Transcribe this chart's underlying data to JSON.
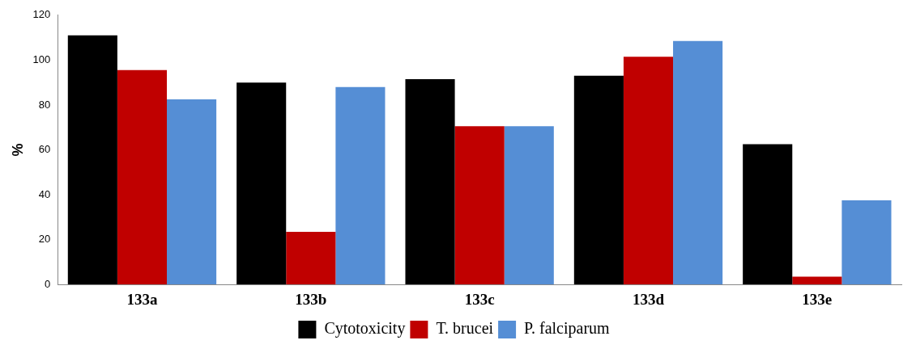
{
  "chart_data": {
    "type": "bar",
    "ylabel": "%",
    "categories": [
      "133a",
      "133b",
      "133c",
      "133d",
      "133e"
    ],
    "series": [
      {
        "name": "Cytotoxicity",
        "color": "#000000",
        "values": [
          111,
          90,
          91.5,
          93,
          62.5
        ]
      },
      {
        "name": "T. brucei",
        "color": "#c00000",
        "values": [
          95.5,
          23.5,
          70.5,
          101.5,
          3.5
        ]
      },
      {
        "name": "P. falciparum",
        "color": "#558ed5",
        "values": [
          82.5,
          88,
          70.5,
          108.5,
          37.5
        ]
      }
    ],
    "ylim": [
      0,
      120
    ],
    "yticks": [
      0,
      20,
      40,
      60,
      80,
      100,
      120
    ],
    "grid": false,
    "legend": "bottom"
  }
}
